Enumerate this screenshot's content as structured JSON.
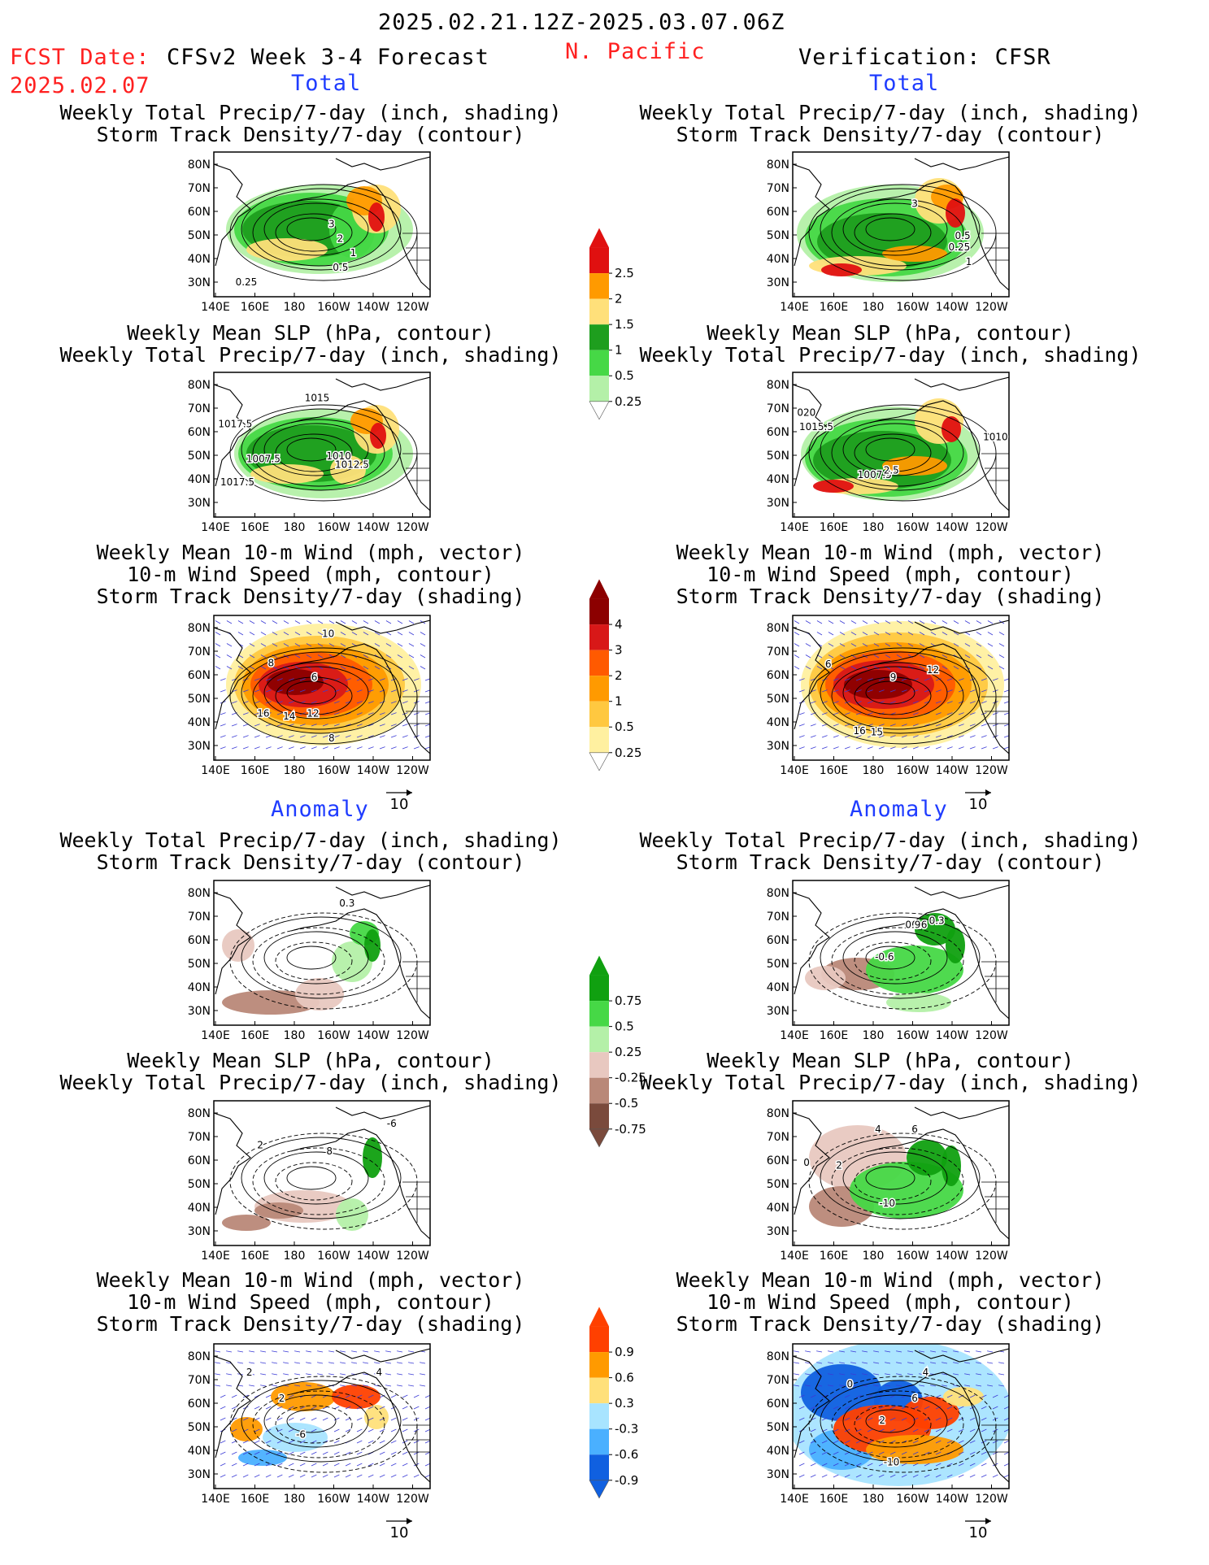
{
  "header": {
    "date_range": "2025.02.21.12Z-2025.03.07.06Z",
    "fcst_label": "FCST Date:",
    "fcst_date": "2025.02.07",
    "forecast_title": "CFSv2 Week 3-4 Forecast",
    "region": "N. Pacific",
    "verification": "Verification: CFSR"
  },
  "sections": {
    "total": "Total",
    "anomaly": "Anomaly"
  },
  "titles": {
    "precip_storm": [
      "Weekly Total Precip/7-day (inch, shading)",
      "Storm Track Density/7-day (contour)"
    ],
    "slp_precip": [
      "Weekly Mean SLP (hPa, contour)",
      "Weekly Total Precip/7-day (inch, shading)"
    ],
    "wind_storm": [
      "Weekly Mean 10-m Wind (mph, vector)",
      "10-m Wind Speed (mph, contour)",
      "Storm Track Density/7-day (shading)"
    ]
  },
  "axes": {
    "lat_labels": [
      "80N",
      "70N",
      "60N",
      "50N",
      "40N",
      "30N"
    ],
    "lon_labels": [
      "140E",
      "160E",
      "180",
      "160W",
      "140W",
      "120W"
    ]
  },
  "vector_ref": "10",
  "colorbars": {
    "precip_total": {
      "labels": [
        "2.5",
        "2",
        "1.5",
        "1",
        "0.5",
        "0.25"
      ],
      "colors": [
        "#e01010",
        "#ff9a00",
        "#ffe07a",
        "#1e9e1e",
        "#46d846",
        "#b4f0a8"
      ]
    },
    "storm_total": {
      "labels": [
        "4",
        "3",
        "2",
        "1",
        "0.5",
        "0.25"
      ],
      "colors": [
        "#8c0000",
        "#d81818",
        "#ff5a00",
        "#ff9a00",
        "#ffc840",
        "#fff0a0"
      ]
    },
    "precip_anom": {
      "labels": [
        "0.75",
        "0.5",
        "0.25",
        "-0.25",
        "-0.5",
        "-0.75"
      ],
      "colors": [
        "#10a010",
        "#46d846",
        "#b4f0a8",
        "#e8c8c0",
        "#b98878",
        "#7a4a3c"
      ]
    },
    "storm_anom": {
      "labels": [
        "0.9",
        "0.6",
        "0.3",
        "-0.3",
        "-0.6",
        "-0.9"
      ],
      "colors": [
        "#ff4000",
        "#ff9a00",
        "#ffe07a",
        "#a8e4ff",
        "#4ab0ff",
        "#1060e0"
      ]
    }
  },
  "contour_labels": {
    "p1": [
      "3",
      "2",
      "1",
      "0.5",
      "0.25"
    ],
    "p2": [
      "1015",
      "1017.5",
      "1007.5",
      "1010",
      "1012.5",
      "1017.5"
    ],
    "p3": [
      "10",
      "8",
      "6",
      "16",
      "14",
      "12",
      "8"
    ],
    "p4": [
      "3",
      "0.25",
      "0.5",
      "1"
    ],
    "p5": [
      "1010",
      "1015.5",
      "1007.5",
      "2.5",
      "020"
    ],
    "p6": [
      "6",
      "9",
      "12",
      "16",
      "15"
    ],
    "p7": [
      "0.3"
    ],
    "p8": [
      "-6",
      "2",
      "8"
    ],
    "p9": [
      "2",
      "4",
      "2",
      "-6"
    ],
    "p10": [
      "0.6",
      "0.9",
      "0.3",
      "-0.6"
    ],
    "p11": [
      "4",
      "0",
      "2",
      "-10",
      "6"
    ],
    "p12": [
      "4",
      "0",
      "2",
      "-10",
      "6"
    ]
  }
}
